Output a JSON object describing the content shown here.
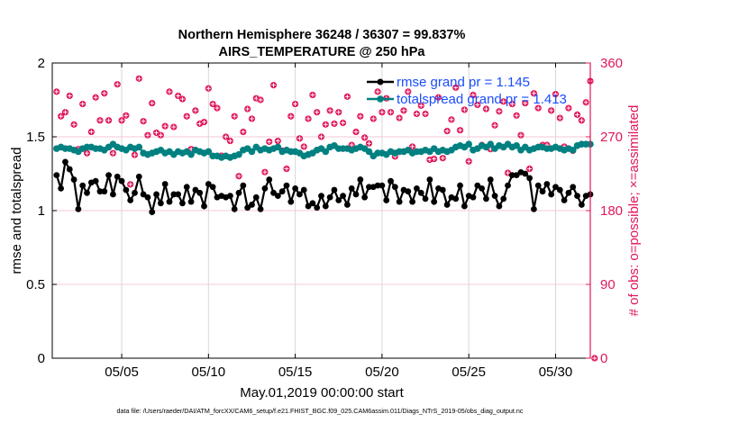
{
  "chart_data": {
    "type": "line",
    "title": [
      "Northern Hemisphere 36248 / 36307 = 99.837%",
      "AIRS_TEMPERATURE @ 250 hPa"
    ],
    "xlabel": "May.01,2019 00:00:00 start",
    "ylabel": "rmse and totalspread",
    "ylabel_right": "# of obs: o=possible; ×=assimilated",
    "footer": "data file: /Users/raeder/DAI/ATM_forcXX/CAM6_setup/f.e21.FHIST_BGC.f09_025.CAM6assim.011/Diags_NTrS_2019-05/obs_diag_output.nc",
    "xlim": [
      1,
      32
    ],
    "ylim": [
      0,
      2
    ],
    "ylim_right": [
      0,
      360
    ],
    "xticks": [
      {
        "value": 5,
        "label": "05/05"
      },
      {
        "value": 10,
        "label": "05/10"
      },
      {
        "value": 15,
        "label": "05/15"
      },
      {
        "value": 20,
        "label": "05/20"
      },
      {
        "value": 25,
        "label": "05/25"
      },
      {
        "value": 30,
        "label": "05/30"
      }
    ],
    "yticks": [
      {
        "value": 0,
        "label": "0"
      },
      {
        "value": 0.5,
        "label": "0.5"
      },
      {
        "value": 1,
        "label": "1"
      },
      {
        "value": 1.5,
        "label": "1.5"
      },
      {
        "value": 2,
        "label": "2"
      }
    ],
    "yticks_right": [
      {
        "value": 0,
        "label": "0"
      },
      {
        "value": 90,
        "label": "90"
      },
      {
        "value": 180,
        "label": "180"
      },
      {
        "value": 270,
        "label": "270"
      },
      {
        "value": 360,
        "label": "360"
      }
    ],
    "grid": true,
    "legend_placement": "top-right",
    "x_start": 1.25,
    "x_step": 0.25,
    "colors": {
      "rmse": "#000000",
      "spread": "#008080",
      "obs": "#e0185a",
      "legend_text": "#1a4cff",
      "grid_h": "#f5c8d6",
      "grid_v": "#d8d8d8"
    },
    "series": [
      {
        "name": "rmse grand pr = 1.145",
        "axis": "left",
        "values": [
          1.24,
          1.15,
          1.33,
          1.28,
          1.21,
          1.01,
          1.17,
          1.12,
          1.19,
          1.2,
          1.13,
          1.13,
          1.24,
          1.11,
          1.23,
          1.2,
          1.14,
          1.07,
          1.12,
          1.23,
          1.11,
          1.09,
          0.99,
          1.11,
          1.05,
          1.18,
          1.06,
          1.11,
          1.11,
          1.05,
          1.16,
          1.06,
          1.14,
          1.12,
          1.03,
          1.18,
          1.16,
          1.09,
          1.1,
          1.09,
          1.1,
          1.01,
          1.12,
          1.17,
          1.02,
          1.04,
          1.09,
          1.01,
          1.15,
          1.21,
          1.12,
          1.1,
          1.13,
          1.17,
          1.06,
          1.15,
          1.11,
          1.14,
          1.03,
          1.05,
          1.02,
          1.1,
          1.03,
          1.09,
          1.14,
          1.07,
          1.1,
          1.04,
          1.15,
          1.11,
          1.21,
          1.09,
          1.16,
          1.16,
          1.17,
          1.17,
          1.07,
          1.2,
          1.16,
          1.06,
          1.14,
          1.13,
          1.06,
          1.15,
          1.12,
          1.08,
          1.21,
          1.06,
          1.15,
          1.14,
          1.04,
          1.09,
          1.08,
          1.17,
          1.03,
          1.1,
          1.09,
          1.17,
          1.15,
          1.08,
          1.21,
          1.1,
          1.03,
          1.08,
          1.17,
          1.24,
          1.24,
          1.26,
          1.25,
          1.22,
          1.01,
          1.17,
          1.13,
          1.18,
          1.11,
          1.16,
          1.14,
          1.07,
          1.12,
          1.16,
          1.1,
          1.04,
          1.1,
          1.11
        ]
      },
      {
        "name": "totalspread grand pr = 1.413",
        "axis": "left",
        "values": [
          1.42,
          1.43,
          1.42,
          1.42,
          1.41,
          1.4,
          1.42,
          1.43,
          1.43,
          1.42,
          1.42,
          1.41,
          1.43,
          1.45,
          1.43,
          1.42,
          1.41,
          1.43,
          1.42,
          1.43,
          1.39,
          1.38,
          1.39,
          1.4,
          1.41,
          1.39,
          1.4,
          1.38,
          1.4,
          1.39,
          1.4,
          1.38,
          1.41,
          1.4,
          1.39,
          1.4,
          1.37,
          1.37,
          1.36,
          1.37,
          1.36,
          1.37,
          1.38,
          1.41,
          1.42,
          1.4,
          1.43,
          1.41,
          1.42,
          1.41,
          1.42,
          1.43,
          1.4,
          1.41,
          1.4,
          1.4,
          1.39,
          1.37,
          1.38,
          1.39,
          1.41,
          1.42,
          1.4,
          1.43,
          1.44,
          1.42,
          1.42,
          1.42,
          1.41,
          1.42,
          1.43,
          1.42,
          1.4,
          1.37,
          1.39,
          1.39,
          1.38,
          1.4,
          1.39,
          1.4,
          1.4,
          1.41,
          1.39,
          1.4,
          1.4,
          1.41,
          1.4,
          1.42,
          1.4,
          1.41,
          1.4,
          1.41,
          1.43,
          1.44,
          1.43,
          1.45,
          1.41,
          1.42,
          1.44,
          1.43,
          1.45,
          1.42,
          1.44,
          1.43,
          1.45,
          1.43,
          1.44,
          1.41,
          1.43,
          1.41,
          1.42,
          1.43,
          1.43,
          1.42,
          1.42,
          1.43,
          1.42,
          1.41,
          1.42,
          1.41,
          1.44,
          1.45,
          1.45,
          1.45
        ]
      },
      {
        "name": "# of obs",
        "axis": "right",
        "values": [
          325,
          295,
          300,
          320,
          285,
          255,
          310,
          250,
          276,
          318,
          290,
          323,
          290,
          250,
          334,
          290,
          296,
          212,
          248,
          341,
          289,
          272,
          311,
          275,
          272,
          283,
          325,
          282,
          320,
          316,
          295,
          255,
          302,
          286,
          288,
          329,
          310,
          305,
          247,
          270,
          265,
          295,
          222,
          276,
          304,
          292,
          317,
          315,
          227,
          264,
          333,
          265,
          253,
          231,
          295,
          310,
          268,
          258,
          292,
          321,
          300,
          270,
          285,
          302,
          286,
          300,
          287,
          319,
          260,
          276,
          295,
          269,
          262,
          292,
          325,
          300,
          317,
          300,
          246,
          293,
          302,
          325,
          258,
          298,
          308,
          298,
          242,
          243,
          318,
          244,
          277,
          291,
          330,
          278,
          303,
          240,
          321,
          309,
          260,
          304,
          255,
          284,
          301,
          313,
          226,
          310,
          296,
          272,
          311,
          231,
          323,
          305,
          260,
          260,
          302,
          322,
          293,
          258,
          305,
          253,
          297,
          290,
          312,
          338,
          0
        ]
      }
    ]
  }
}
